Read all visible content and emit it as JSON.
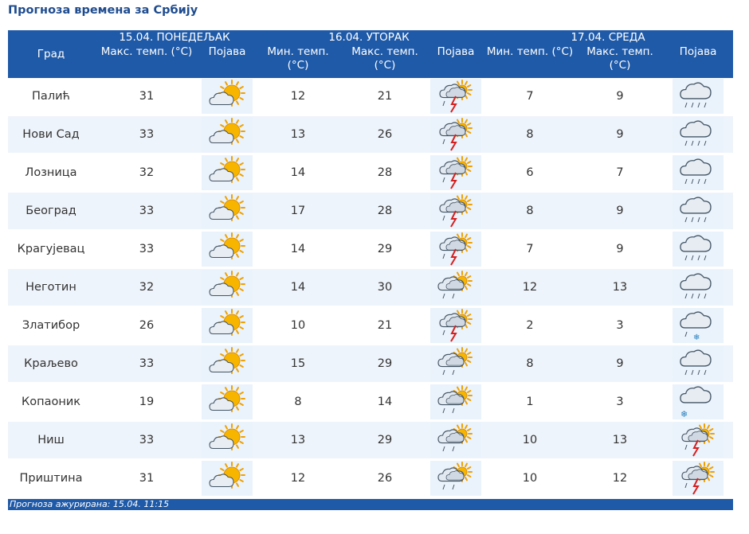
{
  "page_title": "Прогноза времена за Србију",
  "header": {
    "city_col": "Град",
    "days": [
      {
        "label": "15.04. ПОНЕДЕЉАК",
        "cols": [
          "Макс. темп. (°C)",
          "Појава"
        ]
      },
      {
        "label": "16.04. УТОРАК",
        "cols": [
          "Мин. темп. (°C)",
          "Макс. темп. (°C)",
          "Појава"
        ]
      },
      {
        "label": "17.04. СРЕДА",
        "cols": [
          "Мин. темп. (°C)",
          "Макс. темп. (°C)",
          "Појава"
        ]
      }
    ]
  },
  "rows": [
    {
      "city": "Палић",
      "d1_max": "31",
      "d1_icon": "sun-cloud-icon",
      "d2_min": "12",
      "d2_max": "21",
      "d2_icon": "thunderstorm-sun-icon",
      "d3_min": "7",
      "d3_max": "9",
      "d3_icon": "rain-cloud-icon"
    },
    {
      "city": "Нови Сад",
      "d1_max": "33",
      "d1_icon": "sun-cloud-icon",
      "d2_min": "13",
      "d2_max": "26",
      "d2_icon": "thunderstorm-sun-icon",
      "d3_min": "8",
      "d3_max": "9",
      "d3_icon": "rain-cloud-icon"
    },
    {
      "city": "Лозница",
      "d1_max": "32",
      "d1_icon": "sun-cloud-icon",
      "d2_min": "14",
      "d2_max": "28",
      "d2_icon": "thunderstorm-sun-icon",
      "d3_min": "6",
      "d3_max": "7",
      "d3_icon": "rain-cloud-icon"
    },
    {
      "city": "Београд",
      "d1_max": "33",
      "d1_icon": "sun-cloud-icon",
      "d2_min": "17",
      "d2_max": "28",
      "d2_icon": "thunderstorm-sun-icon",
      "d3_min": "8",
      "d3_max": "9",
      "d3_icon": "rain-cloud-icon"
    },
    {
      "city": "Крагујевац",
      "d1_max": "33",
      "d1_icon": "sun-cloud-icon",
      "d2_min": "14",
      "d2_max": "29",
      "d2_icon": "thunderstorm-sun-icon",
      "d3_min": "7",
      "d3_max": "9",
      "d3_icon": "rain-cloud-icon"
    },
    {
      "city": "Неготин",
      "d1_max": "32",
      "d1_icon": "sun-cloud-icon",
      "d2_min": "14",
      "d2_max": "30",
      "d2_icon": "showers-sun-icon",
      "d3_min": "12",
      "d3_max": "13",
      "d3_icon": "rain-cloud-icon"
    },
    {
      "city": "Златибор",
      "d1_max": "26",
      "d1_icon": "sun-cloud-icon",
      "d2_min": "10",
      "d2_max": "21",
      "d2_icon": "thunderstorm-sun-icon",
      "d3_min": "2",
      "d3_max": "3",
      "d3_icon": "sleet-cloud-icon"
    },
    {
      "city": "Краљево",
      "d1_max": "33",
      "d1_icon": "sun-cloud-icon",
      "d2_min": "15",
      "d2_max": "29",
      "d2_icon": "showers-sun-icon",
      "d3_min": "8",
      "d3_max": "9",
      "d3_icon": "rain-cloud-icon"
    },
    {
      "city": "Копаоник",
      "d1_max": "19",
      "d1_icon": "sun-cloud-icon",
      "d2_min": "8",
      "d2_max": "14",
      "d2_icon": "showers-sun-icon",
      "d3_min": "1",
      "d3_max": "3",
      "d3_icon": "snow-cloud-icon"
    },
    {
      "city": "Ниш",
      "d1_max": "33",
      "d1_icon": "sun-cloud-icon",
      "d2_min": "13",
      "d2_max": "29",
      "d2_icon": "showers-sun-icon",
      "d3_min": "10",
      "d3_max": "13",
      "d3_icon": "thunderstorm-sun-icon"
    },
    {
      "city": "Приштина",
      "d1_max": "31",
      "d1_icon": "sun-cloud-icon",
      "d2_min": "12",
      "d2_max": "26",
      "d2_icon": "showers-sun-icon",
      "d3_min": "10",
      "d3_max": "12",
      "d3_icon": "thunderstorm-sun-icon"
    }
  ],
  "footer": "Прогноза ажурирана:  15.04.  11:15",
  "colors": {
    "header_bg": "#1f5aa8",
    "title": "#1f4c8f",
    "row_alt": "#eef4fb",
    "icon_bg": "#eaf3fb"
  }
}
